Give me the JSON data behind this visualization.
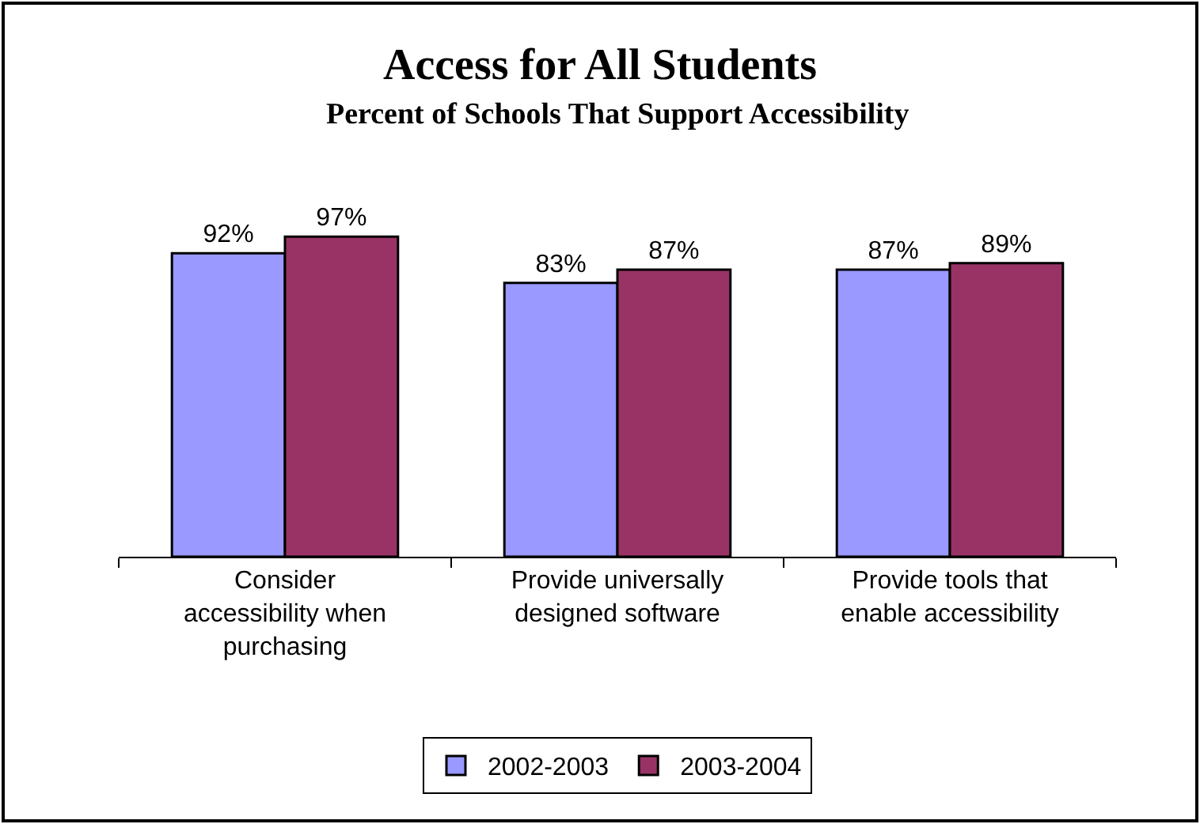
{
  "chart_data": {
    "type": "bar",
    "title": "Access for All Students",
    "subtitle": "Percent of Schools That Support Accessibility",
    "categories": [
      "Consider accessibility when purchasing",
      "Provide universally designed software",
      "Provide tools that enable accessibility"
    ],
    "series": [
      {
        "name": "2002-2003",
        "color": "#9999ff",
        "values": [
          92,
          83,
          87
        ],
        "value_labels": [
          "92%",
          "83%",
          "87%"
        ]
      },
      {
        "name": "2003-2004",
        "color": "#993366",
        "values": [
          97,
          87,
          89
        ],
        "value_labels": [
          "97%",
          "87%",
          "89%"
        ]
      }
    ],
    "legend": "bottom"
  }
}
